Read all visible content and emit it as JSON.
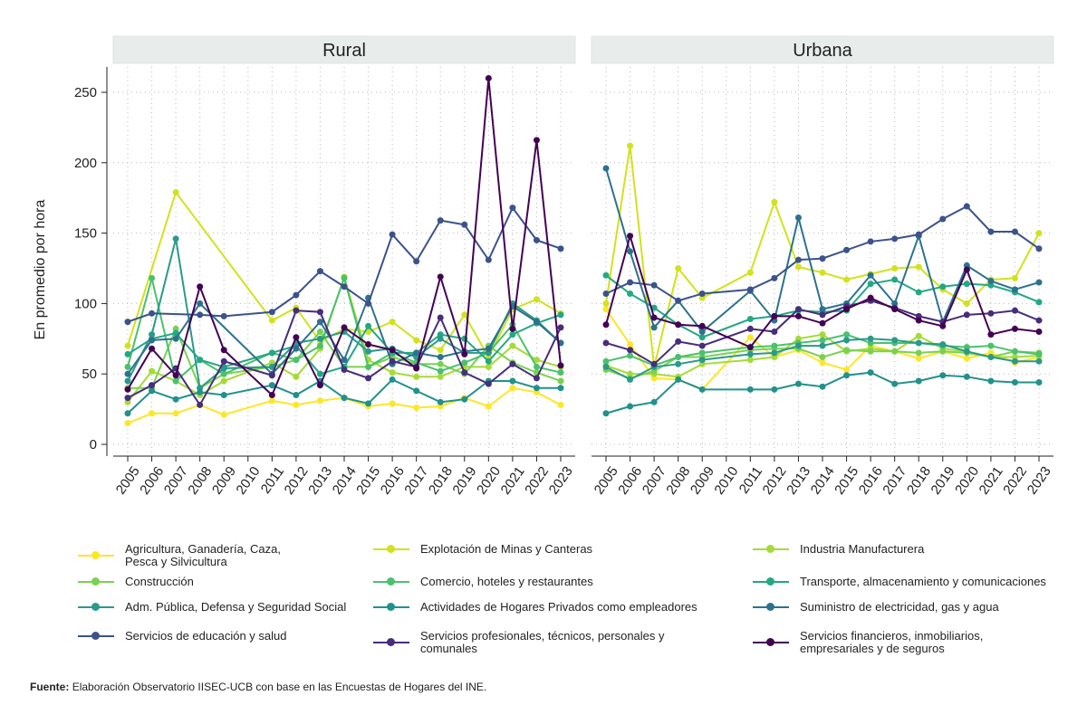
{
  "chart_data": {
    "type": "line",
    "ylabel": "En promedio por hora",
    "ylim": [
      0,
      260
    ],
    "yticks": [
      0,
      50,
      100,
      150,
      200,
      250
    ],
    "x": [
      "2005",
      "2006",
      "2007",
      "2008",
      "2009",
      "2010",
      "2011",
      "2012",
      "2013",
      "2014",
      "2015",
      "2016",
      "2017",
      "2018",
      "2019",
      "2020",
      "2021",
      "2022",
      "2023"
    ],
    "panels": [
      {
        "title": "Rural",
        "series": [
          {
            "name": "Agricultura, Ganadería, Caza, Pesca y Silvicultura",
            "color": "#fde725",
            "values": [
              15,
              22,
              22,
              28,
              21,
              null,
              31,
              28,
              31,
              33,
              27,
              29,
              26,
              27,
              33,
              27,
              40,
              37,
              28
            ]
          },
          {
            "name": "Explotación de Minas y Canteras",
            "color": "#d2e21b",
            "values": [
              70,
              null,
              179,
              null,
              null,
              null,
              88,
              97,
              73,
              82,
              80,
              87,
              74,
              67,
              92,
              62,
              96,
              103,
              93
            ]
          },
          {
            "name": "Industria Manufacturera",
            "color": "#a5db36",
            "values": [
              30,
              52,
              45,
              35,
              45,
              null,
              58,
              48,
              68,
              119,
              60,
              51,
              48,
              48,
              55,
              55,
              70,
              60,
              55
            ]
          },
          {
            "name": "Construcción",
            "color": "#7ad151",
            "values": [
              40,
              40,
              82,
              40,
              50,
              null,
              55,
              60,
              80,
              55,
              55,
              62,
              57,
              57,
              50,
              70,
              58,
              51,
              45
            ]
          },
          {
            "name": "Comercio, hoteles y restaurantes",
            "color": "#4ac16d",
            "values": [
              55,
              118,
              45,
              60,
              50,
              null,
              65,
              60,
              70,
              118,
              55,
              65,
              58,
              52,
              58,
              65,
              85,
              55,
              51
            ]
          },
          {
            "name": "Transporte, almacenamiento y comunicaciones",
            "color": "#22a884",
            "values": [
              64,
              75,
              79,
              60,
              55,
              null,
              65,
              70,
              50,
              55,
              84,
              65,
              65,
              78,
              75,
              59,
              78,
              86,
              92
            ]
          },
          {
            "name": "Adm. Pública, Defensa y Seguridad Social",
            "color": "#2a9a8a",
            "values": [
              45,
              78,
              146,
              40,
              54,
              null,
              55,
              72,
              75,
              80,
              66,
              68,
              62,
              75,
              65,
              65,
              100,
              88,
              72
            ]
          },
          {
            "name": "Actividades de Hogares Privados como empleadores",
            "color": "#21918c",
            "values": [
              22,
              38,
              32,
              37,
              35,
              null,
              42,
              35,
              45,
              33,
              29,
              46,
              38,
              30,
              32,
              45,
              45,
              40,
              40
            ]
          },
          {
            "name": "Suministro de electricidad, gas y agua",
            "color": "#2c728e",
            "values": [
              50,
              74,
              75,
              100,
              null,
              null,
              50,
              68,
              87,
              60,
              104,
              57,
              65,
              62,
              66,
              68,
              98,
              87,
              72
            ]
          },
          {
            "name": "Servicios de educación y salud",
            "color": "#3b528b",
            "values": [
              87,
              93,
              null,
              92,
              91,
              null,
              94,
              106,
              123,
              112,
              100,
              149,
              130,
              159,
              156,
              131,
              168,
              145,
              139
            ]
          },
          {
            "name": "Servicios profesionales, técnicos, personales y comunales",
            "color": "#472d7b",
            "values": [
              33,
              42,
              54,
              28,
              59,
              null,
              49,
              95,
              94,
              53,
              47,
              59,
              55,
              90,
              51,
              43,
              57,
              47,
              83
            ]
          },
          {
            "name": "Servicios financieros, inmobiliarios, empresariales y de seguros",
            "color": "#440154",
            "values": [
              39,
              68,
              49,
              112,
              67,
              null,
              35,
              76,
              42,
              83,
              71,
              67,
              54,
              119,
              64,
              260,
              82,
              216,
              56
            ]
          }
        ]
      },
      {
        "title": "Urbana",
        "series": [
          {
            "name": "Agricultura, Ganadería, Caza, Pesca y Silvicultura",
            "color": "#fde725",
            "values": [
              96,
              71,
              47,
              46,
              39,
              null,
              76,
              62,
              67,
              58,
              53,
              70,
              66,
              61,
              66,
              61,
              65,
              58,
              62
            ]
          },
          {
            "name": "Explotación de Minas y Canteras",
            "color": "#d2e21b",
            "values": [
              100,
              212,
              55,
              125,
              104,
              null,
              122,
              172,
              126,
              122,
              117,
              121,
              125,
              126,
              110,
              100,
              117,
              118,
              150
            ]
          },
          {
            "name": "Industria Manufacturera",
            "color": "#a5db36",
            "values": [
              56,
              50,
              50,
              48,
              57,
              null,
              60,
              62,
              75,
              78,
              66,
              68,
              66,
              77,
              68,
              66,
              62,
              62,
              63
            ]
          },
          {
            "name": "Construcción",
            "color": "#7ad151",
            "values": [
              53,
              47,
              52,
              62,
              62,
              null,
              67,
              68,
              68,
              62,
              67,
              66,
              66,
              65,
              66,
              65,
              62,
              66,
              65
            ]
          },
          {
            "name": "Comercio, hoteles y restaurantes",
            "color": "#4ac16d",
            "values": [
              59,
              63,
              56,
              62,
              65,
              null,
              69,
              70,
              72,
              74,
              78,
              72,
              72,
              72,
              70,
              69,
              70,
              66,
              64
            ]
          },
          {
            "name": "Transporte, almacenamiento y comunicaciones",
            "color": "#22a884",
            "values": [
              120,
              107,
              97,
              85,
              76,
              null,
              89,
              91,
              95,
              94,
              95,
              114,
              117,
              108,
              112,
              114,
              113,
              108,
              101
            ]
          },
          {
            "name": "Adm. Pública, Defensa y Seguridad Social",
            "color": "#2a9a8a",
            "values": [
              55,
              46,
              55,
              57,
              60,
              null,
              64,
              65,
              70,
              70,
              74,
              75,
              74,
              72,
              71,
              66,
              62,
              59,
              59
            ]
          },
          {
            "name": "Actividades de Hogares Privados como empleadores",
            "color": "#21918c",
            "values": [
              22,
              27,
              30,
              46,
              39,
              null,
              39,
              39,
              43,
              41,
              49,
              51,
              43,
              45,
              49,
              48,
              45,
              44,
              44
            ]
          },
          {
            "name": "Suministro de electricidad, gas y agua",
            "color": "#2c728e",
            "values": [
              196,
              137,
              83,
              102,
              80,
              null,
              109,
              88,
              161,
              96,
              100,
              120,
              100,
              148,
              87,
              127,
              116,
              110,
              115
            ]
          },
          {
            "name": "Servicios de educación y salud",
            "color": "#3b528b",
            "values": [
              107,
              115,
              113,
              102,
              107,
              null,
              110,
              118,
              131,
              132,
              138,
              144,
              146,
              149,
              160,
              169,
              151,
              151,
              139
            ]
          },
          {
            "name": "Servicios profesionales, técnicos, personales y comunales",
            "color": "#472d7b",
            "values": [
              72,
              67,
              57,
              73,
              70,
              null,
              82,
              80,
              96,
              92,
              98,
              102,
              97,
              91,
              87,
              92,
              93,
              95,
              88
            ]
          },
          {
            "name": "Servicios financieros, inmobiliarios, empresariales y de seguros",
            "color": "#440154",
            "values": [
              85,
              148,
              90,
              85,
              84,
              null,
              69,
              91,
              91,
              86,
              96,
              104,
              96,
              88,
              84,
              124,
              78,
              82,
              80
            ]
          }
        ]
      }
    ]
  },
  "legend": [
    {
      "label": "Agricultura, Ganadería, Caza, Pesca y Silvicultura",
      "color": "#fde725"
    },
    {
      "label": "Explotación de Minas y Canteras",
      "color": "#d2e21b"
    },
    {
      "label": "Industria Manufacturera",
      "color": "#a5db36"
    },
    {
      "label": "Construcción",
      "color": "#7ad151"
    },
    {
      "label": "Comercio, hoteles y restaurantes",
      "color": "#4ac16d"
    },
    {
      "label": "Transporte, almacenamiento y comunicaciones",
      "color": "#22a884"
    },
    {
      "label": "Adm. Pública, Defensa y Seguridad Social",
      "color": "#2a9a8a"
    },
    {
      "label": "Actividades de Hogares Privados como empleadores",
      "color": "#21918c"
    },
    {
      "label": "Suministro de electricidad, gas y agua",
      "color": "#2c728e"
    },
    {
      "label": "Servicios de educación y salud",
      "color": "#3b528b"
    },
    {
      "label": "Servicios profesionales, técnicos, personales y comunales",
      "color": "#472d7b"
    },
    {
      "label": "Servicios financieros, inmobiliarios, empresariales y de seguros",
      "color": "#440154"
    }
  ],
  "source": {
    "label": "Fuente:",
    "text": "Elaboración Observatorio IISEC-UCB con base en las Encuestas de Hogares del INE."
  }
}
